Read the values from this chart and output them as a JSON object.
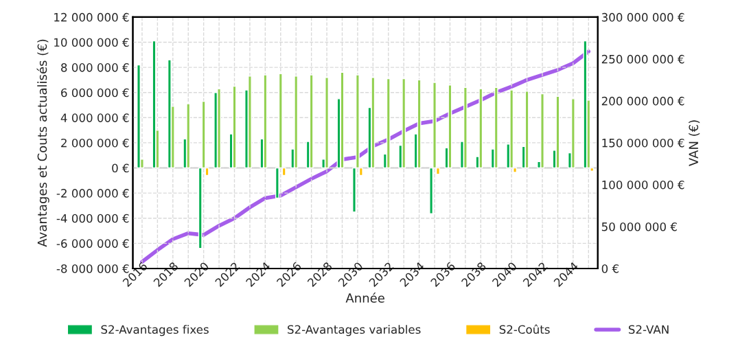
{
  "chart_data": {
    "type": "bar",
    "xlabel": "Année",
    "ylabel": "Avantages et Couts actualisés (€)",
    "y2label": "VAN (€)",
    "categories": [
      "2016",
      null,
      "2018",
      null,
      "2020",
      null,
      "2022",
      null,
      "2024",
      null,
      "2026",
      null,
      "2028",
      null,
      "2030",
      null,
      "2032",
      null,
      "2034",
      null,
      "2036",
      null,
      "2038",
      null,
      "2040",
      null,
      "2042",
      null,
      "2044",
      null
    ],
    "series": [
      {
        "name": "S2-Avantages fixes",
        "color": "#00b050",
        "values": [
          8200000,
          10100000,
          8600000,
          2300000,
          -6400000,
          6000000,
          2700000,
          6200000,
          2300000,
          -2400000,
          1500000,
          2100000,
          700000,
          5500000,
          -3500000,
          4800000,
          1100000,
          1800000,
          2700000,
          -3650000,
          1600000,
          2100000,
          900000,
          1500000,
          1900000,
          1700000,
          500000,
          1400000,
          1200000,
          10100000
        ]
      },
      {
        "name": "S2-Avantages variables",
        "color": "#92d050",
        "values": [
          700000,
          3000000,
          4900000,
          5100000,
          5300000,
          6300000,
          6500000,
          7300000,
          7400000,
          7500000,
          7300000,
          7400000,
          7200000,
          7600000,
          7400000,
          7200000,
          7100000,
          7100000,
          7000000,
          6800000,
          6600000,
          6400000,
          6300000,
          6400000,
          6200000,
          6100000,
          5900000,
          5700000,
          5500000,
          5400000
        ]
      },
      {
        "name": "S2-Coûts",
        "color": "#ffc000",
        "values": [
          null,
          null,
          null,
          null,
          -600000,
          null,
          null,
          null,
          null,
          -600000,
          null,
          null,
          null,
          null,
          -600000,
          null,
          null,
          null,
          null,
          -500000,
          null,
          null,
          null,
          null,
          -350000,
          null,
          null,
          null,
          null,
          -250000
        ]
      },
      {
        "name": "S2-VAN",
        "color": "#a55eea",
        "type": "line",
        "axis": "y2",
        "values": [
          8000000,
          22000000,
          35000000,
          42000000,
          40000000,
          51000000,
          60000000,
          73000000,
          84000000,
          87000000,
          97000000,
          107000000,
          116000000,
          130000000,
          133000000,
          146000000,
          154000000,
          164000000,
          173000000,
          176000000,
          185000000,
          193000000,
          201000000,
          210000000,
          217000000,
          225000000,
          231000000,
          237000000,
          245000000,
          259000000
        ]
      }
    ],
    "ylim": [
      -8000000,
      12000000
    ],
    "yticks": [
      {
        "value": -8000000,
        "label": "-8 000 000 €"
      },
      {
        "value": -6000000,
        "label": "-6 000 000 €"
      },
      {
        "value": -4000000,
        "label": "-4 000 000 €"
      },
      {
        "value": -2000000,
        "label": "-2 000 000 €"
      },
      {
        "value": 0,
        "label": "0 €"
      },
      {
        "value": 2000000,
        "label": "2 000 000 €"
      },
      {
        "value": 4000000,
        "label": "4 000 000 €"
      },
      {
        "value": 6000000,
        "label": "6 000 000 €"
      },
      {
        "value": 8000000,
        "label": "8 000 000 €"
      },
      {
        "value": 10000000,
        "label": "10 000 000 €"
      },
      {
        "value": 12000000,
        "label": "12 000 000 €"
      }
    ],
    "y2lim": [
      0,
      300000000
    ],
    "y2ticks": [
      {
        "value": 0,
        "label": "0 €"
      },
      {
        "value": 50000000,
        "label": "50 000 000 €"
      },
      {
        "value": 100000000,
        "label": "100 000 000 €"
      },
      {
        "value": 150000000,
        "label": "150 000 000 €"
      },
      {
        "value": 200000000,
        "label": "200 000 000 €"
      },
      {
        "value": 250000000,
        "label": "250 000 000 €"
      },
      {
        "value": 300000000,
        "label": "300 000 000 €"
      }
    ],
    "grid": true,
    "legend": "bottom"
  }
}
